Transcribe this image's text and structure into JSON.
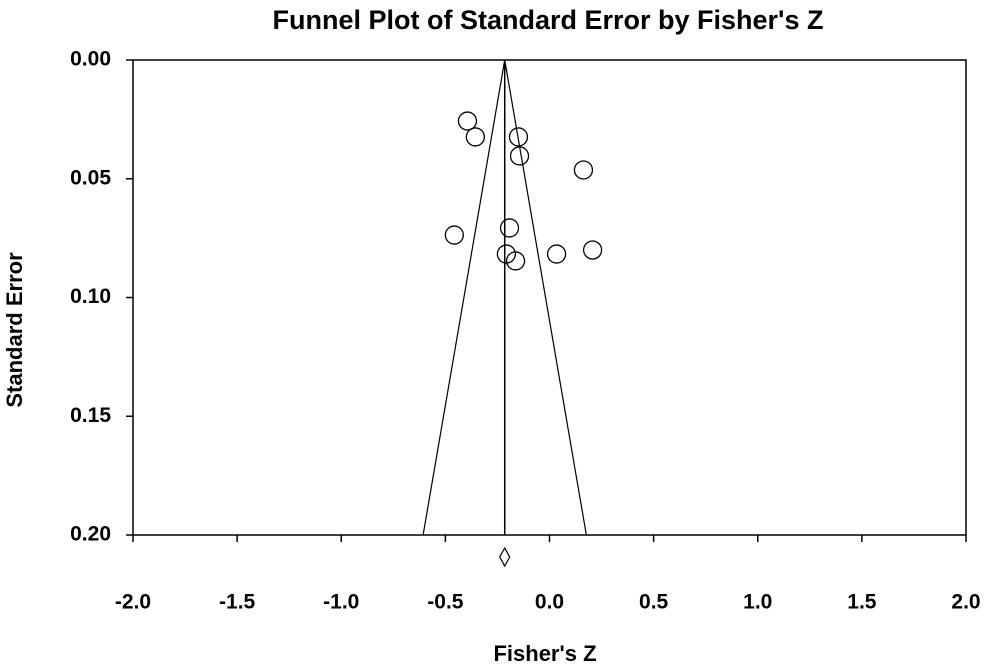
{
  "chart_data": {
    "type": "funnel",
    "title": "Funnel Plot of Standard Error by Fisher's Z",
    "x_label": "Fisher's Z",
    "y_label": "Standard Error",
    "x": [
      -0.394,
      -0.356,
      -0.149,
      -0.144,
      0.163,
      -0.457,
      -0.192,
      -0.207,
      -0.163,
      0.034,
      0.207
    ],
    "values": [
      0.0257,
      0.0324,
      0.0324,
      0.0404,
      0.0463,
      0.0737,
      0.0707,
      0.0817,
      0.0846,
      0.0817,
      0.08
    ],
    "summary": -0.215,
    "funnel_bottom": [
      -0.607,
      0.177
    ],
    "xlim": [
      -2,
      2
    ],
    "ylim": [
      0,
      0.2
    ],
    "xticks": [
      {
        "value": -2,
        "label": "-2.0"
      },
      {
        "value": -1.5,
        "label": "-1.5"
      },
      {
        "value": -1,
        "label": "-1.0"
      },
      {
        "value": -0.5,
        "label": "-0.5"
      },
      {
        "value": 0,
        "label": "0.0"
      },
      {
        "value": 0.5,
        "label": "0.5"
      },
      {
        "value": 1,
        "label": "1.0"
      },
      {
        "value": 1.5,
        "label": "1.5"
      },
      {
        "value": 2,
        "label": "2.0"
      }
    ],
    "yticks": [
      {
        "value": 0,
        "label": "0.00"
      },
      {
        "value": 0.05,
        "label": "0.05"
      },
      {
        "value": 0.1,
        "label": "0.10"
      },
      {
        "value": 0.15,
        "label": "0.15"
      },
      {
        "value": 0.2,
        "label": "0.20"
      }
    ],
    "y_inverted": true,
    "color": "#000000"
  }
}
